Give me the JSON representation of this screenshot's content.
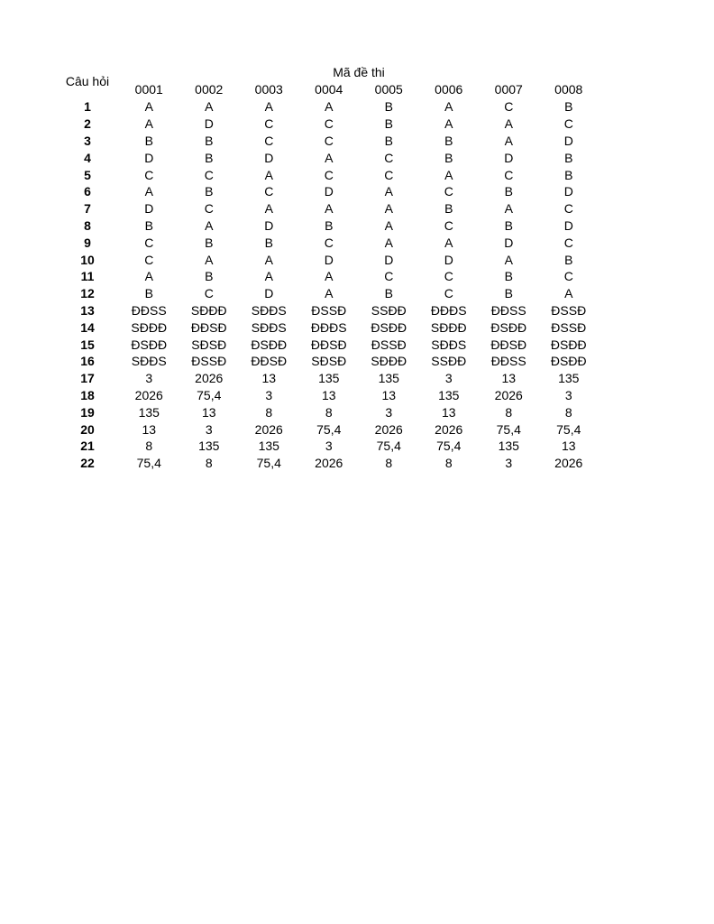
{
  "page": {
    "background": "#ffffff",
    "text_color": "#000000"
  },
  "table": {
    "corner_label": "Câu hỏi",
    "group_header": "Mã đề thi",
    "columns": [
      "0001",
      "0002",
      "0003",
      "0004",
      "0005",
      "0006",
      "0007",
      "0008"
    ],
    "rows": [
      {
        "q": "1",
        "answers": [
          "A",
          "A",
          "A",
          "A",
          "B",
          "A",
          "C",
          "B"
        ]
      },
      {
        "q": "2",
        "answers": [
          "A",
          "D",
          "C",
          "C",
          "B",
          "A",
          "A",
          "C"
        ]
      },
      {
        "q": "3",
        "answers": [
          "B",
          "B",
          "C",
          "C",
          "B",
          "B",
          "A",
          "D"
        ]
      },
      {
        "q": "4",
        "answers": [
          "D",
          "B",
          "D",
          "A",
          "C",
          "B",
          "D",
          "B"
        ]
      },
      {
        "q": "5",
        "answers": [
          "C",
          "C",
          "A",
          "C",
          "C",
          "A",
          "C",
          "B"
        ]
      },
      {
        "q": "6",
        "answers": [
          "A",
          "B",
          "C",
          "D",
          "A",
          "C",
          "B",
          "D"
        ]
      },
      {
        "q": "7",
        "answers": [
          "D",
          "C",
          "A",
          "A",
          "A",
          "B",
          "A",
          "C"
        ]
      },
      {
        "q": "8",
        "answers": [
          "B",
          "A",
          "D",
          "B",
          "A",
          "C",
          "B",
          "D"
        ]
      },
      {
        "q": "9",
        "answers": [
          "C",
          "B",
          "B",
          "C",
          "A",
          "A",
          "D",
          "C"
        ]
      },
      {
        "q": "10",
        "answers": [
          "C",
          "A",
          "A",
          "D",
          "D",
          "D",
          "A",
          "B"
        ]
      },
      {
        "q": "11",
        "answers": [
          "A",
          "B",
          "A",
          "A",
          "C",
          "C",
          "B",
          "C"
        ]
      },
      {
        "q": "12",
        "answers": [
          "B",
          "C",
          "D",
          "A",
          "B",
          "C",
          "B",
          "A"
        ]
      },
      {
        "q": "13",
        "answers": [
          "ĐĐSS",
          "SĐĐĐ",
          "SĐĐS",
          "ĐSSĐ",
          "SSĐĐ",
          "ĐĐĐS",
          "ĐĐSS",
          "ĐSSĐ"
        ]
      },
      {
        "q": "14",
        "answers": [
          "SĐĐĐ",
          "ĐĐSĐ",
          "SĐĐS",
          "ĐĐĐS",
          "ĐSĐĐ",
          "SĐĐĐ",
          "ĐSĐĐ",
          "ĐSSĐ"
        ]
      },
      {
        "q": "15",
        "answers": [
          "ĐSĐĐ",
          "SĐSĐ",
          "ĐSĐĐ",
          "ĐĐSĐ",
          "ĐSSĐ",
          "SĐĐS",
          "ĐĐSĐ",
          "ĐSĐĐ"
        ]
      },
      {
        "q": "16",
        "answers": [
          "SĐĐS",
          "ĐSSĐ",
          "ĐĐSĐ",
          "SĐSĐ",
          "SĐĐĐ",
          "SSĐĐ",
          "ĐĐSS",
          "ĐSĐĐ"
        ]
      },
      {
        "q": "17",
        "answers": [
          "3",
          "2026",
          "13",
          "135",
          "135",
          "3",
          "13",
          "135"
        ]
      },
      {
        "q": "18",
        "answers": [
          "2026",
          "75,4",
          "3",
          "13",
          "13",
          "135",
          "2026",
          "3"
        ]
      },
      {
        "q": "19",
        "answers": [
          "135",
          "13",
          "8",
          "8",
          "3",
          "13",
          "8",
          "8"
        ]
      },
      {
        "q": "20",
        "answers": [
          "13",
          "3",
          "2026",
          "75,4",
          "2026",
          "2026",
          "75,4",
          "75,4"
        ]
      },
      {
        "q": "21",
        "answers": [
          "8",
          "135",
          "135",
          "3",
          "75,4",
          "75,4",
          "135",
          "13"
        ]
      },
      {
        "q": "22",
        "answers": [
          "75,4",
          "8",
          "75,4",
          "2026",
          "8",
          "8",
          "3",
          "2026"
        ]
      }
    ]
  }
}
